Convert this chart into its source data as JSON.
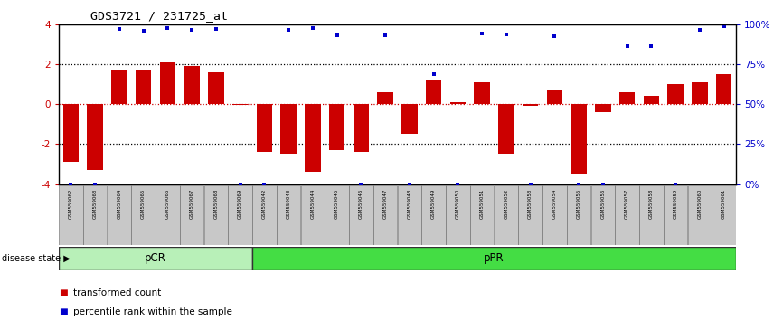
{
  "title": "GDS3721 / 231725_at",
  "samples": [
    "GSM559062",
    "GSM559063",
    "GSM559064",
    "GSM559065",
    "GSM559066",
    "GSM559067",
    "GSM559068",
    "GSM559069",
    "GSM559042",
    "GSM559043",
    "GSM559044",
    "GSM559045",
    "GSM559046",
    "GSM559047",
    "GSM559048",
    "GSM559049",
    "GSM559050",
    "GSM559051",
    "GSM559052",
    "GSM559053",
    "GSM559054",
    "GSM559055",
    "GSM559056",
    "GSM559057",
    "GSM559058",
    "GSM559059",
    "GSM559060",
    "GSM559061"
  ],
  "bar_values": [
    -2.9,
    -3.3,
    1.7,
    1.7,
    2.1,
    1.9,
    1.6,
    -0.05,
    -2.4,
    -2.5,
    -3.4,
    -2.3,
    -2.4,
    0.6,
    -1.5,
    1.2,
    0.1,
    1.1,
    -2.5,
    -0.1,
    0.7,
    -3.5,
    -0.4,
    0.6,
    0.4,
    1.0,
    1.1,
    1.5
  ],
  "percentile_left": [
    -4.0,
    -4.0,
    3.75,
    3.65,
    3.8,
    3.7,
    3.75,
    -4.0,
    -4.0,
    3.7,
    3.8,
    3.45,
    -4.0,
    3.45,
    -4.0,
    1.5,
    -4.0,
    3.55,
    3.5,
    -4.0,
    3.4,
    -4.0,
    -4.0,
    2.9,
    2.9,
    -4.0,
    3.7,
    3.9
  ],
  "group_labels": [
    "pCR",
    "pPR"
  ],
  "group_sizes": [
    8,
    20
  ],
  "pcr_color": "#b8f0b8",
  "ppr_color": "#44dd44",
  "bar_color": "#cc0000",
  "dot_color": "#0000cc",
  "ylim_left": [
    -4,
    4
  ],
  "yticks_left": [
    -4,
    -2,
    0,
    2,
    4
  ],
  "ytick_labels_left": [
    "-4",
    "-2",
    "0",
    "2",
    "4"
  ],
  "ytick_labels_right": [
    "0%",
    "25%",
    "50%",
    "75%",
    "100%"
  ],
  "legend_items": [
    "transformed count",
    "percentile rank within the sample"
  ],
  "legend_colors": [
    "#cc0000",
    "#0000cc"
  ]
}
